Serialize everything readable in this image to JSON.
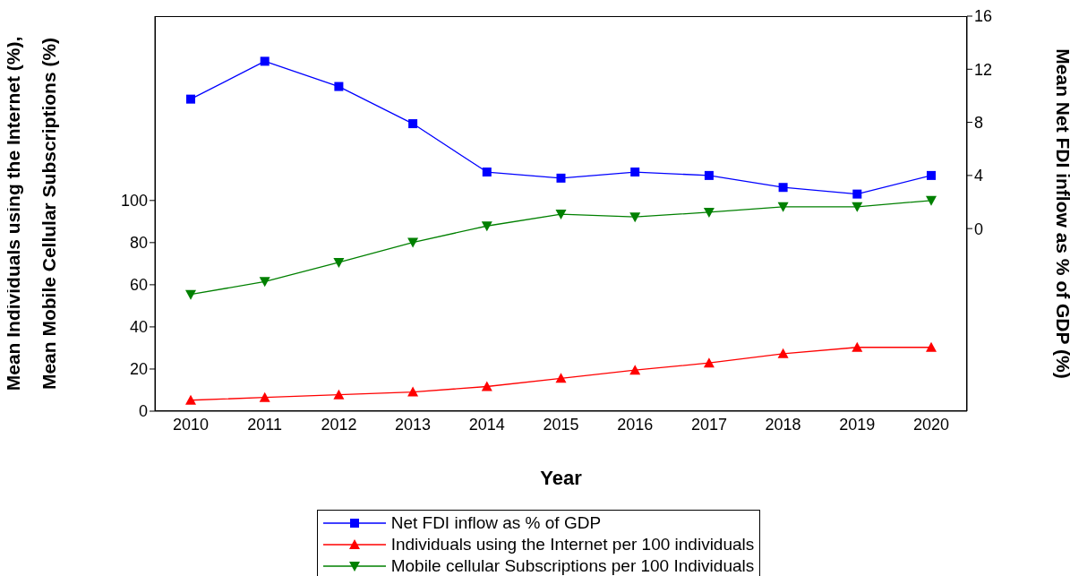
{
  "chart_data": {
    "type": "line",
    "xlabel": "Year",
    "ylabel": "Mean Individuals using the Internet (%),\nMean Mobile Cellular Subscriptions (%)",
    "y2label": "Mean Net FDI inflow as % of GDP (%)",
    "categories": [
      "2010",
      "2011",
      "2012",
      "2013",
      "2014",
      "2015",
      "2016",
      "2017",
      "2018",
      "2019",
      "2020"
    ],
    "series": [
      {
        "name": "Net FDI inflow as % of GDP",
        "color": "#0000ff",
        "axis": "y2",
        "marker": "square",
        "values": [
          9.75,
          12.6,
          10.7,
          7.9,
          4.26,
          3.8,
          4.26,
          4.0,
          3.1,
          2.6,
          4.0
        ]
      },
      {
        "name": "Individuals using the Internet per 100 individuals",
        "color": "#ff0000",
        "marker": "triangle",
        "values": [
          5.2,
          6.5,
          7.8,
          9.1,
          11.7,
          15.6,
          19.5,
          22.9,
          27.3,
          30.3,
          30.3
        ]
      },
      {
        "name": "Mobile cellular Subscriptions per 100 Individuals",
        "color": "#008000",
        "marker": "triangle-down",
        "values": [
          55.4,
          61.5,
          70.6,
          80.1,
          87.9,
          93.5,
          92.2,
          94.4,
          97.0,
          97.0,
          100
        ]
      }
    ],
    "ylim": [
      0,
      187.5
    ],
    "yticks": [
      0,
      20,
      40,
      60,
      80,
      100
    ],
    "y2lim": [
      -13.75,
      16
    ],
    "y2ticks": [
      0,
      4,
      8,
      12,
      16
    ],
    "grid": false,
    "legend": "bottom"
  }
}
